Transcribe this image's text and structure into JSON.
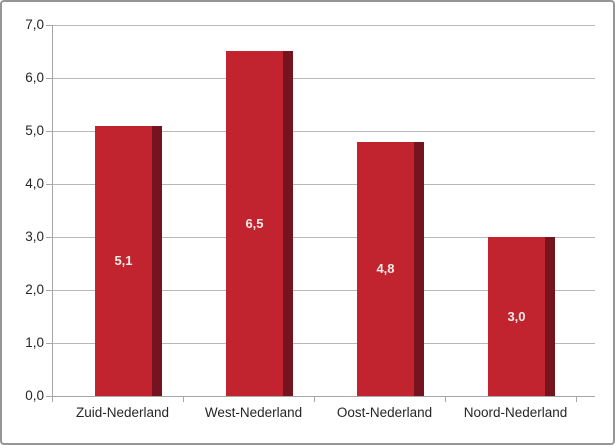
{
  "chart_data": {
    "type": "bar",
    "title": "",
    "categories": [
      "Zuid-Nederland",
      "West-Nederland",
      "Oost-Nederland",
      "Noord-Nederland"
    ],
    "values": [
      5.1,
      6.5,
      4.8,
      3.0
    ],
    "value_labels": [
      "5,1",
      "6,5",
      "4,8",
      "3,0"
    ],
    "y_ticks": [
      "0,0",
      "1,0",
      "2,0",
      "3,0",
      "4,0",
      "5,0",
      "6,0",
      "7,0"
    ],
    "ylim": [
      0,
      7
    ],
    "xlabel": "",
    "ylabel": "",
    "grid": true,
    "legend": false,
    "colors": {
      "bar": "#C2242F",
      "bar_shadow": "#75141F",
      "value_label_text": "#F1EDE6",
      "gridline": "#B8B8B8",
      "axis": "#A6A6A6",
      "axis_text": "#262626",
      "border": "#969696",
      "background": "#FFFFFF"
    }
  }
}
